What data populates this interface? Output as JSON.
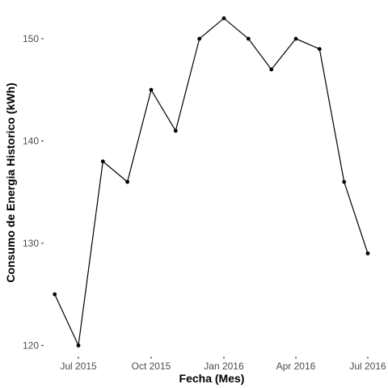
{
  "chart_data": {
    "type": "line",
    "title": "",
    "xlabel": "Fecha (Mes)",
    "ylabel": "Consumo de Energia Historico (kWh)",
    "x": [
      "2015-06",
      "2015-07",
      "2015-08",
      "2015-09",
      "2015-10",
      "2015-11",
      "2015-12",
      "2016-01",
      "2016-02",
      "2016-03",
      "2016-04",
      "2016-05",
      "2016-06",
      "2016-07"
    ],
    "values": [
      125,
      120,
      138,
      136,
      145,
      141,
      150,
      152,
      150,
      147,
      150,
      149,
      136,
      129
    ],
    "ylim": [
      119,
      153
    ],
    "y_ticks": [
      120,
      130,
      140,
      150
    ],
    "x_ticks": [
      {
        "date": "2015-07",
        "label": "Jul 2015"
      },
      {
        "date": "2015-10",
        "label": "Oct 2015"
      },
      {
        "date": "2016-01",
        "label": "Jan 2016"
      },
      {
        "date": "2016-04",
        "label": "Apr 2016"
      },
      {
        "date": "2016-07",
        "label": "Jul 2016"
      }
    ],
    "grid": false,
    "legend": "none",
    "line_color": "#000000",
    "point_color": "#000000"
  }
}
